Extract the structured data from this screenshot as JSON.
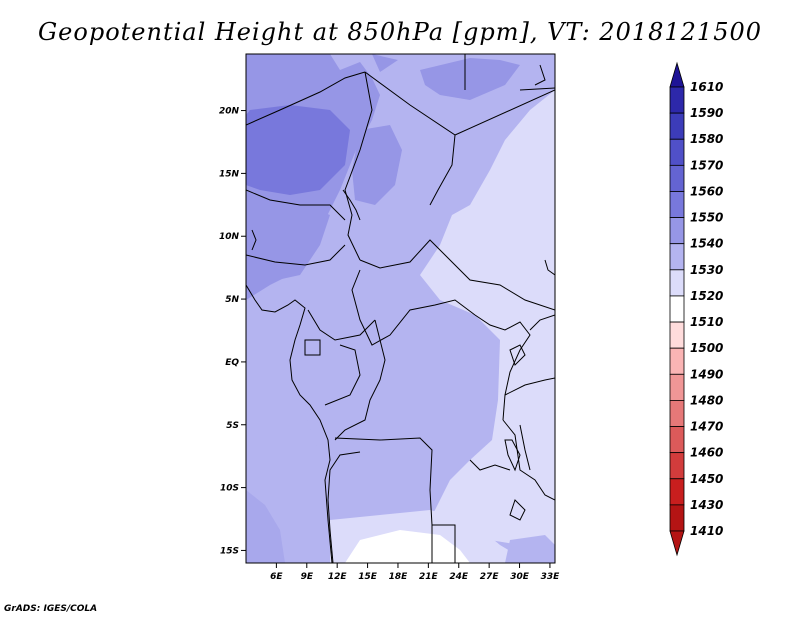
{
  "title": "Geopotential Height at 850hPa [gpm], VT: 2018121500",
  "credit": "GrADS: IGES/COLA",
  "map": {
    "lon_range": [
      3,
      33.5
    ],
    "lat_range": [
      -16,
      24.5
    ],
    "lon_ticks": [
      "6E",
      "9E",
      "12E",
      "15E",
      "18E",
      "21E",
      "24E",
      "27E",
      "30E",
      "33E"
    ],
    "lat_ticks": [
      "20N",
      "15N",
      "10N",
      "5N",
      "EQ",
      "5S",
      "10S",
      "15S"
    ]
  },
  "colorbar": {
    "labels": [
      "1610",
      "1590",
      "1580",
      "1570",
      "1560",
      "1550",
      "1540",
      "1530",
      "1520",
      "1510",
      "1500",
      "1490",
      "1480",
      "1470",
      "1460",
      "1450",
      "1430",
      "1410"
    ],
    "colors": [
      "#1e1496",
      "#2d28aa",
      "#3c3cb9",
      "#5050c8",
      "#6464d2",
      "#7878dc",
      "#9696e6",
      "#b4b4f0",
      "#dcdcfa",
      "#ffffff",
      "#ffdcdc",
      "#fab4b4",
      "#f09696",
      "#e67878",
      "#dc5a5a",
      "#d23c3c",
      "#c81e1e",
      "#b41414"
    ],
    "top_arrow_color": "#1e1496",
    "bottom_arrow_color": "#b41414"
  }
}
